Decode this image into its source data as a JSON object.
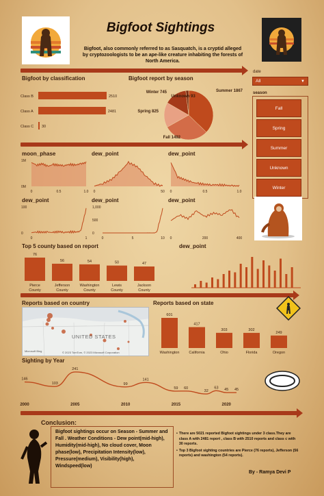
{
  "header": {
    "title": "Bigfoot Sightings",
    "intro_bold1": "Bigfoot",
    "intro_mid1": ", also commonly referred to as ",
    "intro_bold2": "Sasquatch",
    "intro_rest": ", is a cryptid alleged by cryptozoologists to be an ape-like creature inhabiting the forests of North America."
  },
  "filters": {
    "date_label": "date",
    "date_value": "All",
    "season_label": "season",
    "season_options": [
      "Fall",
      "Spring",
      "Summer",
      "Unknown",
      "Winter"
    ]
  },
  "colors": {
    "accent": "#bf4a1d",
    "dark": "#3a1e0c",
    "arrow": "#a8391a"
  },
  "chart_data": [
    {
      "type": "bar",
      "orientation": "horizontal",
      "title": "Bigfoot by classification",
      "categories": [
        "Class B",
        "Class A",
        "Class C"
      ],
      "values": [
        2510,
        2481,
        30
      ]
    },
    {
      "type": "pie",
      "title": "Bigfoot report by season",
      "labels": [
        "Summer",
        "Fall",
        "Spring",
        "Winter",
        "Unknown"
      ],
      "values": [
        1867,
        1492,
        825,
        745,
        93
      ],
      "colors": [
        "#bf4a1d",
        "#d36c48",
        "#e8a184",
        "#a53a1a",
        "#7c2b12"
      ]
    },
    {
      "type": "area",
      "title": "moon_phase",
      "ytick_labels": [
        "0M",
        "1M"
      ],
      "xtick_labels": [
        "0",
        "0.5",
        "1.0"
      ],
      "x": [
        0,
        0.1,
        0.2,
        0.3,
        0.4,
        0.5,
        0.6,
        0.7,
        0.8,
        0.9,
        1.0
      ],
      "values": [
        1.0,
        0.9,
        0.95,
        0.85,
        0.92,
        0.9,
        0.88,
        0.93,
        0.9,
        0.95,
        1.0
      ]
    },
    {
      "type": "area",
      "title": "dew_point",
      "ytick_labels": [],
      "xtick_labels": [
        "0",
        "50"
      ],
      "x": [
        0,
        10,
        20,
        30,
        40,
        50,
        60,
        70,
        80
      ],
      "values": [
        0.05,
        0.15,
        0.3,
        0.6,
        0.95,
        0.8,
        0.45,
        0.15,
        0.03
      ]
    },
    {
      "type": "area",
      "title": "dew_point",
      "ytick_labels": [],
      "xtick_labels": [
        "0",
        "0.5",
        "1.0"
      ],
      "x": [
        0,
        0.1,
        0.2,
        0.3,
        0.4,
        0.5,
        0.6,
        0.7,
        0.8,
        0.9,
        1.0
      ],
      "values": [
        0.95,
        0.4,
        0.3,
        0.2,
        0.15,
        0.12,
        0.1,
        0.1,
        0.08,
        0.06,
        0.05
      ]
    },
    {
      "type": "line",
      "title": "dew_point",
      "ytick_labels": [
        "0",
        "100"
      ],
      "xtick_labels": [
        "0",
        "1"
      ],
      "x": [
        0,
        0.1,
        0.2,
        0.3,
        0.4,
        0.5,
        0.6,
        0.7,
        0.8,
        0.9,
        1.0
      ],
      "values": [
        5,
        8,
        6,
        7,
        5,
        9,
        6,
        8,
        7,
        10,
        95
      ]
    },
    {
      "type": "line",
      "title": "dew_point",
      "ytick_labels": [
        "0",
        "500",
        "1,000"
      ],
      "xtick_labels": [
        "0",
        "5",
        "10"
      ],
      "x": [
        0,
        1,
        2,
        3,
        4,
        5,
        6,
        7,
        8,
        9,
        10
      ],
      "values": [
        10,
        5,
        3,
        2,
        2,
        1,
        2,
        1,
        3,
        50,
        1000
      ]
    },
    {
      "type": "line",
      "title": "dew_point",
      "ytick_labels": [],
      "xtick_labels": [
        "0",
        "200",
        "400"
      ],
      "x": [
        0,
        50,
        100,
        150,
        200,
        250,
        300,
        350,
        400
      ],
      "values": [
        0.35,
        0.5,
        0.4,
        0.6,
        0.45,
        0.55,
        0.5,
        0.65,
        0.4
      ]
    },
    {
      "type": "bar",
      "title": "Top 5 county based on report",
      "categories": [
        "Pierce County",
        "Jefferson County",
        "Washington County",
        "Lewis County",
        "Jackson County"
      ],
      "values": [
        76,
        56,
        54,
        50,
        47
      ]
    },
    {
      "type": "bar",
      "title": "dew_point",
      "values": [
        0.1,
        0.2,
        0.15,
        0.3,
        0.25,
        0.4,
        0.5,
        0.45,
        0.7,
        0.6,
        0.9,
        0.55,
        0.8,
        0.65,
        0.5,
        0.85,
        0.4,
        0.6
      ]
    },
    {
      "type": "scatter",
      "title": "Reports based on country",
      "map_label": "UNITED STATES",
      "credit": "© 2023 TomTom, © 2023 Microsoft Corporation",
      "brand": "Microsoft Bing"
    },
    {
      "type": "bar",
      "title": "Reports based on state",
      "categories": [
        "Washington",
        "California",
        "Ohio",
        "Florida",
        "Oregon"
      ],
      "values": [
        601,
        417,
        303,
        302,
        249
      ]
    },
    {
      "type": "line",
      "title": "Sighting by Year",
      "xtick_labels": [
        "2000",
        "2005",
        "2010",
        "2015",
        "2020"
      ],
      "x": [
        2000,
        2003,
        2005,
        2010,
        2012,
        2015,
        2016,
        2018,
        2019,
        2020,
        2021
      ],
      "values": [
        146,
        103,
        241,
        99,
        141,
        59,
        60,
        32,
        63,
        45,
        45
      ],
      "data_labels": [
        "146",
        "103",
        "241",
        "99",
        "141",
        "59",
        "60",
        "32",
        "63",
        "45",
        "45"
      ]
    }
  ],
  "conclusion": {
    "title": "Conclusion:",
    "left_text": "Bigfoot sightings occur on Season - Summer and Fall . Weather Conditions - Dew point(mid-high), Humidity(mid-high), No cloud cover, Moon phase(low), Precipitation Intensity(low), Pressure(medium), Visibility(high), Windspeed(low)",
    "bullets": [
      "There are 5021 reported Bigfoot sightings under 3 class.They are class A with 2481 report , class B with 2510 reports and class c with 30 reports.",
      "Top 3 Bigfoot sighting countries are Pierce (76 reports), Jefferson (56 reports) and washington (54 reports)."
    ],
    "author": "By - Ramya Devi P"
  }
}
